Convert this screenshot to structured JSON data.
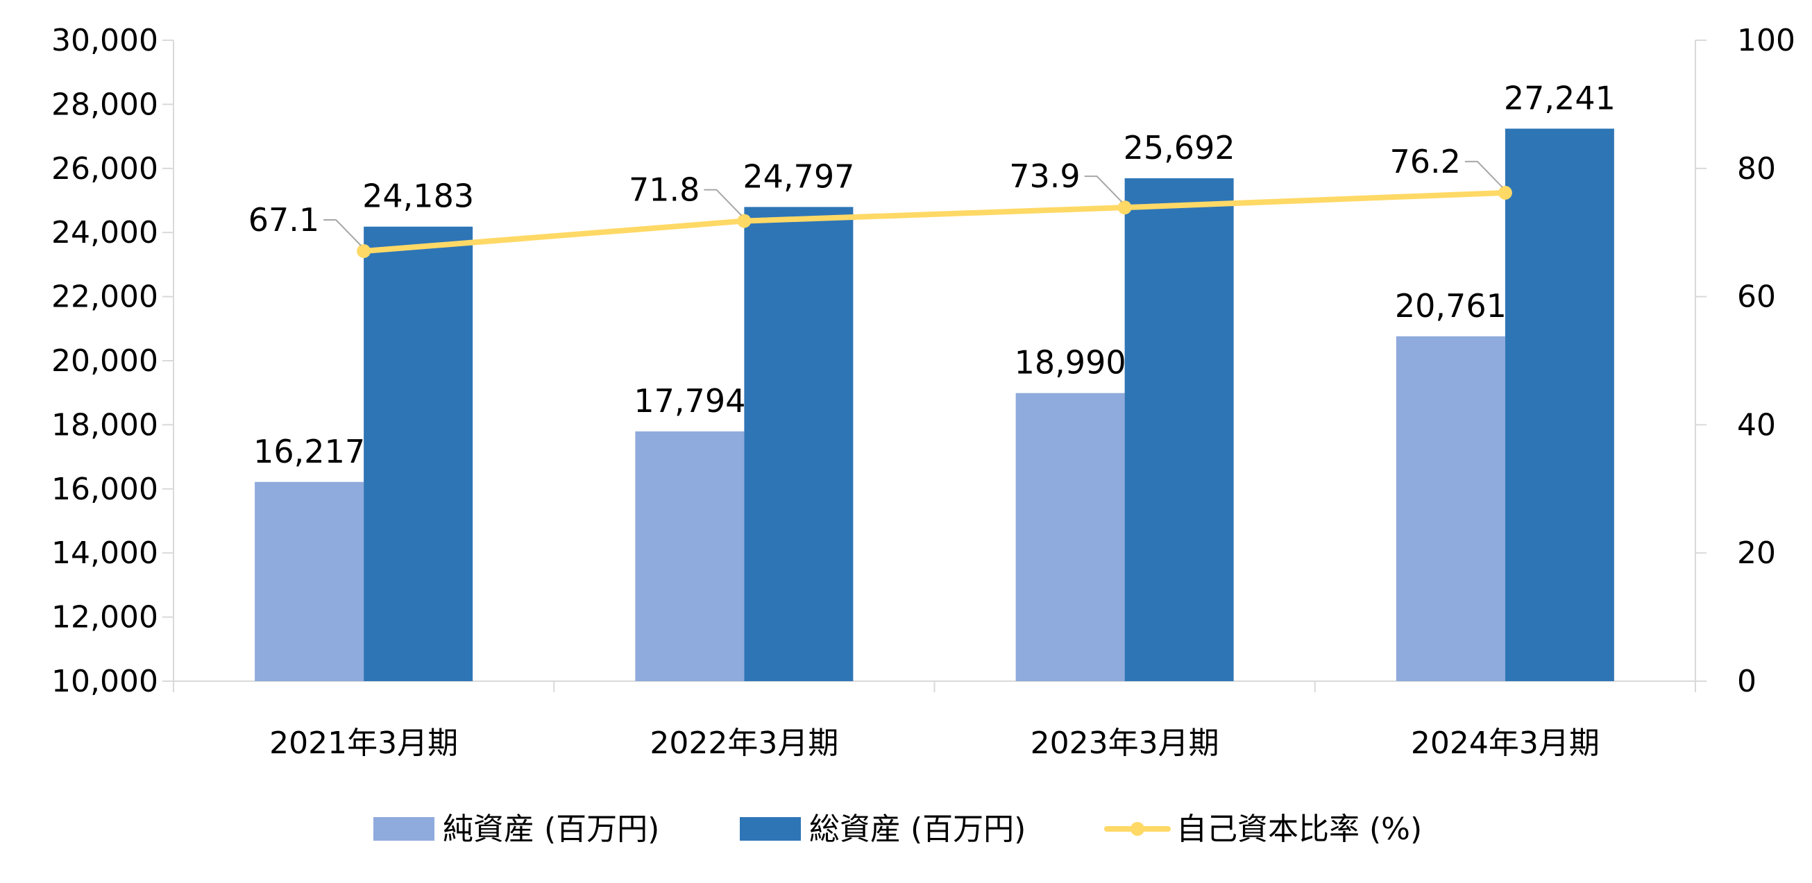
{
  "chart_data": {
    "type": "bar",
    "categories": [
      "2021年3月期",
      "2022年3月期",
      "2023年3月期",
      "2024年3月期"
    ],
    "series": [
      {
        "name": "純資産 (百万円)",
        "type": "bar",
        "axis": "left",
        "color": "#8faadc",
        "values": [
          16217,
          17794,
          18990,
          20761
        ],
        "labels": [
          "16,217",
          "17,794",
          "18,990",
          "20,761"
        ]
      },
      {
        "name": "総資産 (百万円)",
        "type": "bar",
        "axis": "left",
        "color": "#2e75b6",
        "values": [
          24183,
          24797,
          25692,
          27241
        ],
        "labels": [
          "24,183",
          "24,797",
          "25,692",
          "27,241"
        ]
      },
      {
        "name": "自己資本比率 (%)",
        "type": "line",
        "axis": "right",
        "color": "#ffd966",
        "values": [
          67.1,
          71.8,
          73.9,
          76.2
        ],
        "labels": [
          "67.1",
          "71.8",
          "73.9",
          "76.2"
        ]
      }
    ],
    "y_left": {
      "min": 10000,
      "max": 30000,
      "step": 2000,
      "tick_labels": [
        "10,000",
        "12,000",
        "14,000",
        "16,000",
        "18,000",
        "20,000",
        "22,000",
        "24,000",
        "26,000",
        "28,000",
        "30,000"
      ]
    },
    "y_right": {
      "min": 0,
      "max": 100,
      "step": 20,
      "tick_labels": [
        "0",
        "20",
        "40",
        "60",
        "80",
        "100"
      ]
    },
    "legend_position": "bottom",
    "grid": false
  }
}
